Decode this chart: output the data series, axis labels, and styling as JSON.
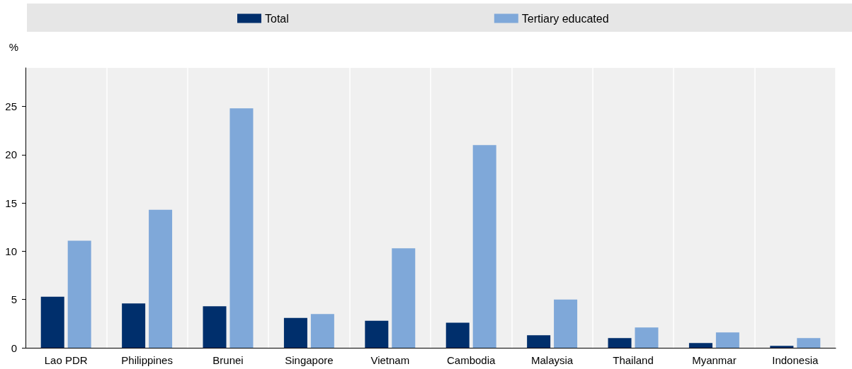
{
  "chart_data": {
    "type": "bar",
    "ylabel": "%",
    "categories": [
      "Lao PDR",
      "Philippines",
      "Brunei",
      "Singapore",
      "Vietnam",
      "Cambodia",
      "Malaysia",
      "Thailand",
      "Myanmar",
      "Indonesia"
    ],
    "series": [
      {
        "name": "Total",
        "color": "#002f6c",
        "values": [
          5.3,
          4.6,
          4.3,
          3.1,
          2.8,
          2.6,
          1.3,
          1.0,
          0.5,
          0.2
        ]
      },
      {
        "name": "Tertiary educated",
        "color": "#7fa8d9",
        "values": [
          11.1,
          14.3,
          24.8,
          3.5,
          10.3,
          21.0,
          5.0,
          2.1,
          1.6,
          1.0
        ]
      }
    ],
    "ylim": [
      0,
      29
    ],
    "yticks": [
      0,
      5,
      10,
      15,
      20,
      25
    ],
    "grid": "x",
    "legend": "top"
  }
}
